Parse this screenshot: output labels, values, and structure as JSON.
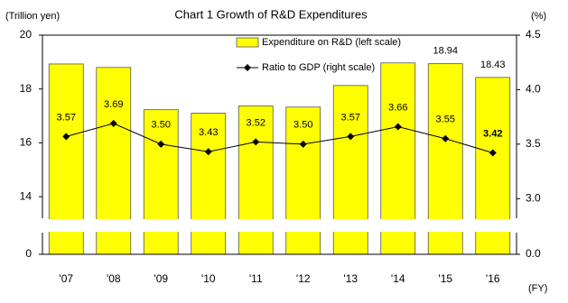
{
  "chart_data": {
    "type": "bar-line",
    "title": "Chart 1   Growth of R&D Expenditures",
    "y_label": "(Trillion yen)",
    "y2_label": "(%)",
    "x_label": "(FY)",
    "categories": [
      "'07",
      "'08",
      "'09",
      "'10",
      "'11",
      "'12",
      "'13",
      "'14",
      "'15",
      "'16"
    ],
    "series": [
      {
        "name": "Expenditure on R&D (left scale)",
        "type": "bar",
        "color": "#ffff00",
        "values": [
          18.93,
          18.8,
          17.23,
          17.1,
          17.37,
          17.33,
          18.13,
          18.97,
          18.94,
          18.43
        ],
        "value_labels": [
          null,
          null,
          null,
          null,
          null,
          null,
          null,
          null,
          "18.94",
          "18.43"
        ]
      },
      {
        "name": "Ratio to GDP (right scale)",
        "type": "line",
        "color": "#000000",
        "axis": "y2",
        "values": [
          3.57,
          3.69,
          3.5,
          3.43,
          3.52,
          3.5,
          3.57,
          3.66,
          3.55,
          3.42
        ],
        "value_labels": [
          "3.57",
          "3.69",
          "3.50",
          "3.43",
          "3.52",
          "3.50",
          "3.57",
          "3.66",
          "3.55",
          "3.42"
        ]
      }
    ],
    "ylim": [
      13.2,
      20
    ],
    "yticks": [
      0,
      14,
      16,
      18,
      20
    ],
    "y2lim": [
      2.82,
      4.5
    ],
    "y2ticks": [
      {
        "value": 0,
        "label": "0.0"
      },
      {
        "value": 3,
        "label": "3.0"
      },
      3.5,
      {
        "value": 4,
        "label": "4.0"
      },
      4.5
    ],
    "axis_break": true
  }
}
